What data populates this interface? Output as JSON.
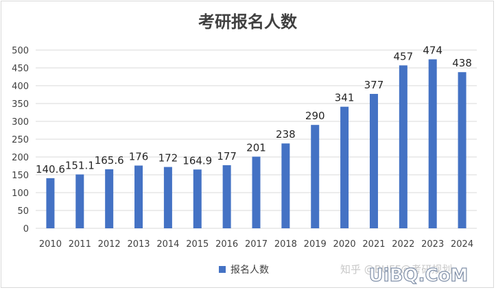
{
  "chart_data": {
    "type": "bar",
    "title": "考研报名人数",
    "categories": [
      "2010",
      "2011",
      "2012",
      "2013",
      "2014",
      "2015",
      "2016",
      "2017",
      "2018",
      "2019",
      "2020",
      "2021",
      "2022",
      "2023",
      "2024"
    ],
    "series": [
      {
        "name": "报名人数",
        "values": [
          140.6,
          151.1,
          165.6,
          176,
          172,
          164.9,
          177,
          201,
          238,
          290,
          341,
          377,
          457,
          474,
          438
        ],
        "labels": [
          "140.6",
          "151.1",
          "165.6",
          "176",
          "172",
          "164.9",
          "177",
          "201",
          "238",
          "290",
          "341",
          "377",
          "457",
          "474",
          "438"
        ]
      }
    ],
    "ylim": [
      0,
      500
    ],
    "yticks": [
      "0",
      "50",
      "100",
      "150",
      "200",
      "250",
      "300",
      "350",
      "400",
      "450",
      "500"
    ],
    "grid": true,
    "legend": "bottom",
    "colors": {
      "bar": "#4472c4",
      "grid": "#d9d9d9",
      "text": "#404040"
    }
  },
  "watermark": {
    "text": "知乎 @BUFF@考研规划"
  },
  "logo": {
    "text": "UiBQ.CoM"
  }
}
